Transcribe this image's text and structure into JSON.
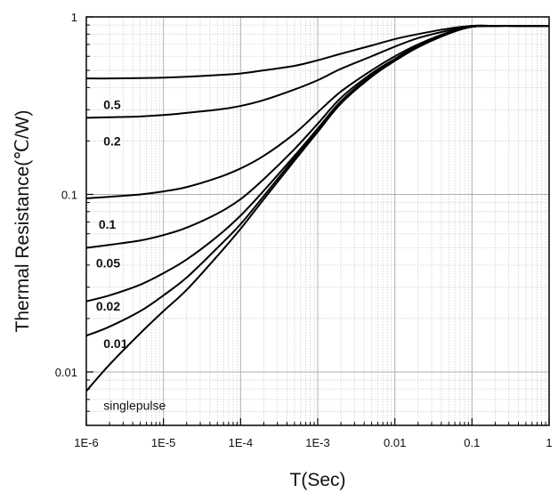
{
  "chart_data": {
    "type": "line",
    "xlabel": "T(Sec)",
    "ylabel": "Thermal Resistance(℃/W)",
    "x_scale": "log",
    "y_scale": "log",
    "xlim": [
      1e-06,
      1
    ],
    "ylim": [
      0.005,
      1
    ],
    "grid": true,
    "x_ticks": [
      {
        "value": 1e-06,
        "label": "1E-6"
      },
      {
        "value": 1e-05,
        "label": "1E-5"
      },
      {
        "value": 0.0001,
        "label": "1E-4"
      },
      {
        "value": 0.001,
        "label": "1E-3"
      },
      {
        "value": 0.01,
        "label": "0.01"
      },
      {
        "value": 0.1,
        "label": "0.1"
      },
      {
        "value": 1,
        "label": "1"
      }
    ],
    "y_ticks": [
      {
        "value": 0.01,
        "label": "0.01"
      },
      {
        "value": 0.1,
        "label": "0.1"
      },
      {
        "value": 1,
        "label": "1"
      }
    ],
    "x": [
      1e-06,
      2e-06,
      5e-06,
      1e-05,
      2e-05,
      5e-05,
      0.0001,
      0.0002,
      0.0005,
      0.001,
      0.002,
      0.005,
      0.01,
      0.02,
      0.05,
      0.1,
      0.2,
      0.5,
      1
    ],
    "series": [
      {
        "name": "0.5",
        "label_pos": [
          1.5e-06,
          0.32
        ],
        "values": [
          0.45,
          0.45,
          0.452,
          0.455,
          0.46,
          0.47,
          0.48,
          0.5,
          0.53,
          0.57,
          0.62,
          0.69,
          0.75,
          0.8,
          0.86,
          0.89,
          0.89,
          0.89,
          0.89
        ]
      },
      {
        "name": "0.2",
        "label_pos": [
          1.5e-06,
          0.2
        ],
        "values": [
          0.27,
          0.272,
          0.275,
          0.28,
          0.288,
          0.3,
          0.315,
          0.34,
          0.39,
          0.44,
          0.51,
          0.6,
          0.68,
          0.76,
          0.84,
          0.89,
          0.89,
          0.89,
          0.89
        ]
      },
      {
        "name": "0.1",
        "label_pos": [
          1.3e-06,
          0.068
        ],
        "values": [
          0.095,
          0.097,
          0.1,
          0.104,
          0.11,
          0.124,
          0.14,
          0.165,
          0.22,
          0.29,
          0.38,
          0.5,
          0.6,
          0.7,
          0.82,
          0.88,
          0.89,
          0.89,
          0.89
        ]
      },
      {
        "name": "0.05",
        "label_pos": [
          1.2e-06,
          0.041
        ],
        "values": [
          0.05,
          0.052,
          0.055,
          0.059,
          0.065,
          0.078,
          0.094,
          0.122,
          0.18,
          0.25,
          0.35,
          0.48,
          0.58,
          0.69,
          0.81,
          0.88,
          0.89,
          0.89,
          0.89
        ]
      },
      {
        "name": "0.02",
        "label_pos": [
          1.2e-06,
          0.0235
        ],
        "values": [
          0.025,
          0.027,
          0.031,
          0.036,
          0.043,
          0.058,
          0.076,
          0.105,
          0.165,
          0.235,
          0.335,
          0.47,
          0.575,
          0.685,
          0.81,
          0.88,
          0.89,
          0.89,
          0.89
        ]
      },
      {
        "name": "0.01",
        "label_pos": [
          1.5e-06,
          0.0145
        ],
        "values": [
          0.016,
          0.018,
          0.022,
          0.027,
          0.034,
          0.05,
          0.068,
          0.098,
          0.16,
          0.23,
          0.33,
          0.465,
          0.57,
          0.68,
          0.81,
          0.88,
          0.89,
          0.89,
          0.89
        ]
      },
      {
        "name": "singlepulse",
        "label_pos": [
          1.5e-06,
          0.0065
        ],
        "values": [
          0.0078,
          0.011,
          0.0165,
          0.022,
          0.029,
          0.045,
          0.064,
          0.094,
          0.155,
          0.225,
          0.325,
          0.46,
          0.565,
          0.675,
          0.805,
          0.88,
          0.89,
          0.89,
          0.89
        ]
      }
    ],
    "line_color": "#000000",
    "grid_major_color": "#b0b0b0",
    "grid_minor_color": "#cfcfcf"
  }
}
